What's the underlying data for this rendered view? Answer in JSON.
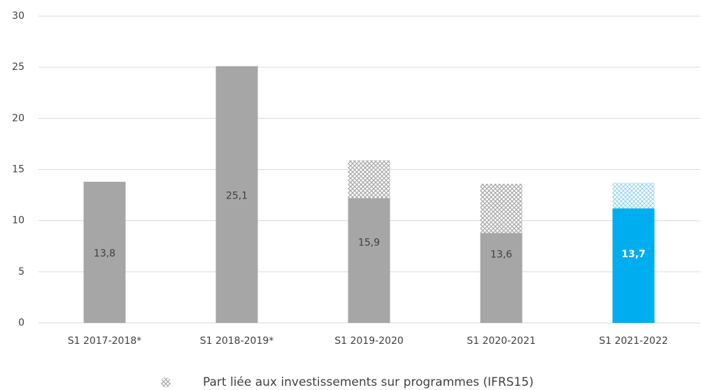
{
  "chart_data": {
    "type": "stacked_bar",
    "categories": [
      "S1 2017-2018*",
      "S1 2018-2019*",
      "S1 2019-2020",
      "S1 2020-2021",
      "S1 2021-2022"
    ],
    "series": [
      {
        "colors": [
          "#a6a6a6",
          "#a6a6a6",
          "#a6a6a6",
          "#a6a6a6",
          "#00aeef"
        ],
        "values": [
          13.8,
          25.1,
          12.2,
          8.8,
          11.2
        ]
      },
      {
        "name": "Part liée aux investissements sur programmes (IFRS15)",
        "colors": [
          "#a6a6a6",
          "#a6a6a6",
          "#a6a6a6",
          "#a6a6a6",
          "#9dd6ef"
        ],
        "hatched": true,
        "values": [
          null,
          null,
          3.7,
          4.8,
          2.5
        ]
      }
    ],
    "totals": {
      "values": [
        13.8,
        25.1,
        15.9,
        13.6,
        13.7
      ],
      "value_labels": [
        "13,8",
        "25,1",
        "15,9",
        "13,6",
        "13,7"
      ]
    },
    "ylim": [
      0,
      30
    ],
    "yticks": [
      0,
      5,
      10,
      15,
      20,
      25,
      30
    ],
    "grid": true,
    "legend": "bottom"
  }
}
